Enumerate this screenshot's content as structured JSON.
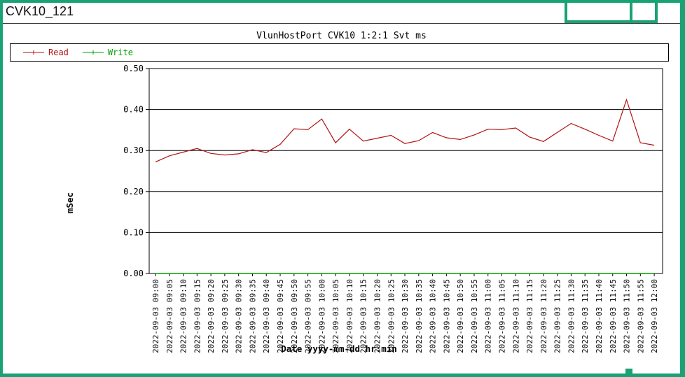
{
  "window": {
    "title": "CVK10_121"
  },
  "colors": {
    "frame": "#18A275",
    "read": "#B01212",
    "write": "#00A000",
    "axis": "#000000",
    "background": "#FFFFFF"
  },
  "chart_data": {
    "type": "line",
    "title": "VlunHostPort CVK10 1:2:1 Svt ms",
    "xlabel": "Date yyyy-mm-dd hr:min",
    "ylabel": "mSec",
    "ylim": [
      0,
      0.5
    ],
    "ytick_labels": [
      "0.00",
      "0.10",
      "0.20",
      "0.30",
      "0.40",
      "0.50"
    ],
    "grid": "horizontal-full-width",
    "legend_position": "top-strip",
    "categories": [
      "2022-09-03 09:00",
      "2022-09-03 09:05",
      "2022-09-03 09:10",
      "2022-09-03 09:15",
      "2022-09-03 09:20",
      "2022-09-03 09:25",
      "2022-09-03 09:30",
      "2022-09-03 09:35",
      "2022-09-03 09:40",
      "2022-09-03 09:45",
      "2022-09-03 09:50",
      "2022-09-03 09:55",
      "2022-09-03 10:00",
      "2022-09-03 10:05",
      "2022-09-03 10:10",
      "2022-09-03 10:15",
      "2022-09-03 10:20",
      "2022-09-03 10:25",
      "2022-09-03 10:30",
      "2022-09-03 10:35",
      "2022-09-03 10:40",
      "2022-09-03 10:45",
      "2022-09-03 10:50",
      "2022-09-03 10:55",
      "2022-09-03 11:00",
      "2022-09-03 11:05",
      "2022-09-03 11:10",
      "2022-09-03 11:15",
      "2022-09-03 11:20",
      "2022-09-03 11:25",
      "2022-09-03 11:30",
      "2022-09-03 11:35",
      "2022-09-03 11:40",
      "2022-09-03 11:45",
      "2022-09-03 11:50",
      "2022-09-03 11:55",
      "2022-09-03 12:00"
    ],
    "series": [
      {
        "name": "Read",
        "color": "#B01212",
        "values": [
          0.272,
          0.287,
          0.296,
          0.305,
          0.293,
          0.289,
          0.292,
          0.302,
          0.295,
          0.315,
          0.353,
          0.351,
          0.377,
          0.319,
          0.352,
          0.323,
          0.33,
          0.337,
          0.317,
          0.324,
          0.344,
          0.331,
          0.327,
          0.338,
          0.352,
          0.351,
          0.355,
          0.333,
          0.322,
          0.344,
          0.366,
          0.352,
          0.337,
          0.323,
          0.424,
          0.319,
          0.313
        ]
      },
      {
        "name": "Write",
        "color": "#00A000",
        "values": [
          0,
          0,
          0,
          0,
          0,
          0,
          0,
          0,
          0,
          0,
          0,
          0,
          0,
          0,
          0,
          0,
          0,
          0,
          0,
          0,
          0,
          0,
          0,
          0,
          0,
          0,
          0,
          0,
          0,
          0,
          0,
          0,
          0,
          0,
          0,
          0,
          0
        ]
      }
    ]
  }
}
